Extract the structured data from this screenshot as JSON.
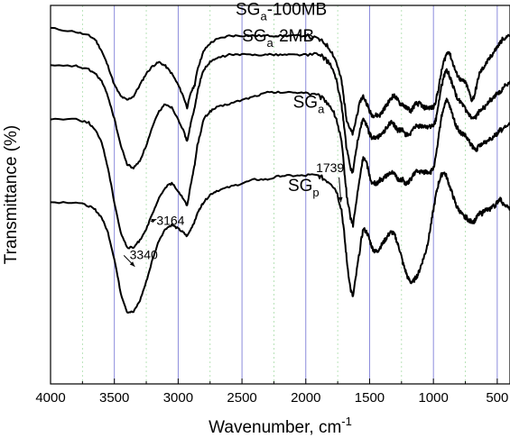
{
  "chart_data": {
    "type": "line",
    "title": "",
    "xlabel": "Wavenumber, cm",
    "xlabel_superscript": "-1",
    "ylabel": "Transmittance (%)",
    "xlim": [
      4000,
      400
    ],
    "x_reversed": true,
    "x_ticks": [
      "4000",
      "3500",
      "3000",
      "2500",
      "2000",
      "1500",
      "1000",
      "500"
    ],
    "x_tick_values": [
      4000,
      3500,
      3000,
      2500,
      2000,
      1500,
      1000,
      500
    ],
    "y_ticks_shown": false,
    "grid": {
      "major_vertical": [
        3500,
        3000,
        2500,
        2000,
        1500,
        1000,
        500
      ],
      "minor_vertical_dashed": [
        3750,
        3250,
        2750,
        2250,
        1750,
        1250,
        750
      ],
      "major_color": "#7f7fd8",
      "minor_color": "#a8dca8"
    },
    "series": [
      {
        "name": "SG",
        "name_sub": "a",
        "name_suffix": "-100MB",
        "x": [
          4000,
          3800,
          3700,
          3650,
          3600,
          3550,
          3500,
          3450,
          3400,
          3350,
          3300,
          3250,
          3200,
          3150,
          3100,
          3050,
          3000,
          2960,
          2930,
          2900,
          2870,
          2850,
          2820,
          2800,
          2750,
          2700,
          2600,
          2500,
          2400,
          2300,
          2200,
          2100,
          2000,
          1900,
          1850,
          1800,
          1760,
          1720,
          1700,
          1680,
          1650,
          1630,
          1600,
          1570,
          1550,
          1520,
          1500,
          1480,
          1460,
          1440,
          1420,
          1400,
          1380,
          1360,
          1340,
          1320,
          1300,
          1280,
          1260,
          1240,
          1220,
          1200,
          1180,
          1160,
          1140,
          1120,
          1100,
          1080,
          1060,
          1040,
          1020,
          1000,
          980,
          960,
          940,
          920,
          900,
          880,
          860,
          840,
          820,
          800,
          780,
          760,
          740,
          720,
          700,
          680,
          660,
          640,
          620,
          600,
          580,
          560,
          540,
          520,
          500,
          480,
          460,
          440,
          420,
          400
        ],
        "y": [
          94,
          93,
          92,
          91,
          88,
          84,
          79,
          76,
          75,
          76,
          79,
          82,
          84,
          85,
          84,
          82,
          79,
          76,
          73,
          77,
          79,
          83,
          86,
          88,
          90,
          91,
          92,
          92,
          92,
          92,
          92,
          92,
          92,
          91,
          90,
          88,
          85,
          80,
          75,
          70,
          67,
          66,
          71,
          75,
          76,
          74,
          72,
          71,
          71,
          71,
          71,
          72,
          73,
          74,
          75,
          76,
          76,
          75,
          74,
          74,
          73,
          73,
          72,
          73,
          74,
          74,
          74,
          73,
          73,
          73,
          73,
          73,
          75,
          78,
          82,
          85,
          87,
          88,
          86,
          84,
          82,
          81,
          80,
          80,
          79,
          77,
          75,
          76,
          79,
          82,
          83,
          84,
          85,
          86,
          87,
          88,
          89,
          90,
          91,
          91,
          92,
          92
        ]
      },
      {
        "name": "SG",
        "name_sub": "a",
        "name_suffix": "-2MB",
        "x": [
          4000,
          3800,
          3700,
          3650,
          3600,
          3550,
          3500,
          3450,
          3400,
          3350,
          3300,
          3250,
          3200,
          3150,
          3100,
          3050,
          3000,
          2960,
          2930,
          2900,
          2870,
          2850,
          2820,
          2800,
          2750,
          2700,
          2600,
          2500,
          2400,
          2300,
          2200,
          2100,
          2000,
          1900,
          1850,
          1800,
          1760,
          1720,
          1700,
          1680,
          1650,
          1630,
          1600,
          1570,
          1550,
          1520,
          1500,
          1480,
          1460,
          1440,
          1420,
          1400,
          1380,
          1360,
          1340,
          1320,
          1300,
          1280,
          1260,
          1240,
          1220,
          1200,
          1180,
          1160,
          1140,
          1120,
          1100,
          1080,
          1060,
          1040,
          1020,
          1000,
          980,
          960,
          940,
          920,
          900,
          880,
          860,
          840,
          820,
          800,
          780,
          760,
          740,
          720,
          700,
          680,
          660,
          640,
          620,
          600,
          580,
          560,
          540,
          520,
          500,
          480,
          460,
          440,
          420,
          400
        ],
        "y": [
          84,
          84,
          83,
          82,
          80,
          76,
          70,
          63,
          58,
          57,
          59,
          63,
          68,
          72,
          74,
          73,
          70,
          67,
          64,
          69,
          73,
          77,
          81,
          83,
          85,
          86,
          87,
          87,
          87,
          87,
          87,
          87,
          87,
          87,
          86,
          84,
          80,
          74,
          68,
          62,
          57,
          56,
          63,
          68,
          70,
          68,
          66,
          65,
          65,
          65,
          66,
          66,
          67,
          68,
          69,
          69,
          68,
          67,
          67,
          67,
          66,
          66,
          66,
          67,
          68,
          68,
          68,
          68,
          68,
          68,
          68,
          68,
          70,
          74,
          78,
          81,
          83,
          82,
          80,
          78,
          76,
          75,
          74,
          73,
          72,
          71,
          70,
          70,
          71,
          72,
          73,
          73,
          74,
          75,
          75,
          76,
          77,
          77,
          78,
          79,
          79,
          80
        ]
      },
      {
        "name": "SG",
        "name_sub": "a",
        "name_suffix": "",
        "x": [
          4000,
          3800,
          3700,
          3650,
          3600,
          3550,
          3500,
          3450,
          3400,
          3350,
          3300,
          3250,
          3200,
          3150,
          3100,
          3050,
          3000,
          2960,
          2930,
          2900,
          2870,
          2850,
          2820,
          2800,
          2750,
          2700,
          2600,
          2500,
          2400,
          2300,
          2200,
          2100,
          2000,
          1900,
          1850,
          1800,
          1760,
          1720,
          1700,
          1680,
          1650,
          1630,
          1600,
          1570,
          1550,
          1520,
          1500,
          1480,
          1460,
          1440,
          1420,
          1400,
          1380,
          1360,
          1340,
          1320,
          1300,
          1280,
          1260,
          1240,
          1220,
          1200,
          1180,
          1160,
          1140,
          1120,
          1100,
          1080,
          1060,
          1040,
          1020,
          1000,
          980,
          960,
          940,
          920,
          900,
          880,
          860,
          840,
          820,
          800,
          780,
          760,
          740,
          720,
          700,
          680,
          660,
          640,
          620,
          600,
          580,
          560,
          540,
          520,
          500,
          480,
          460,
          440,
          420,
          400
        ],
        "y": [
          70,
          70,
          69,
          67,
          64,
          57,
          48,
          40,
          36,
          36,
          38,
          41,
          45,
          49,
          52,
          53,
          51,
          49,
          47,
          53,
          58,
          63,
          67,
          70,
          72,
          73,
          74,
          75,
          76,
          77,
          77,
          77,
          77,
          76,
          75,
          73,
          70,
          64,
          57,
          50,
          44,
          42,
          49,
          56,
          60,
          58,
          55,
          53,
          53,
          53,
          54,
          54,
          55,
          55,
          56,
          56,
          55,
          54,
          54,
          54,
          53,
          53,
          54,
          55,
          56,
          56,
          56,
          56,
          56,
          56,
          56,
          57,
          60,
          65,
          70,
          73,
          75,
          74,
          72,
          70,
          68,
          67,
          66,
          66,
          65,
          64,
          63,
          62,
          62,
          63,
          63,
          64,
          64,
          65,
          65,
          66,
          66,
          67,
          67,
          68,
          68,
          69
        ]
      },
      {
        "name": "SG",
        "name_sub": "p",
        "name_suffix": "",
        "x": [
          4000,
          3800,
          3700,
          3650,
          3600,
          3550,
          3500,
          3450,
          3400,
          3350,
          3300,
          3250,
          3200,
          3150,
          3100,
          3050,
          3000,
          2960,
          2930,
          2900,
          2870,
          2850,
          2820,
          2800,
          2750,
          2700,
          2600,
          2500,
          2400,
          2300,
          2200,
          2100,
          2000,
          1900,
          1850,
          1800,
          1760,
          1720,
          1700,
          1680,
          1650,
          1630,
          1600,
          1570,
          1550,
          1520,
          1500,
          1480,
          1460,
          1440,
          1420,
          1400,
          1380,
          1360,
          1340,
          1320,
          1300,
          1280,
          1260,
          1240,
          1220,
          1200,
          1180,
          1160,
          1140,
          1120,
          1100,
          1080,
          1060,
          1040,
          1020,
          1000,
          980,
          960,
          940,
          920,
          900,
          880,
          860,
          840,
          820,
          800,
          780,
          760,
          740,
          720,
          700,
          680,
          660,
          640,
          620,
          600,
          580,
          560,
          540,
          520,
          500,
          480,
          460,
          440,
          420,
          400
        ],
        "y": [
          48,
          48,
          47,
          46,
          44,
          40,
          33,
          24,
          19,
          19,
          22,
          27,
          33,
          38,
          41,
          42,
          41,
          40,
          39,
          41,
          43,
          45,
          47,
          48,
          50,
          51,
          52,
          53,
          54,
          54,
          55,
          55,
          55,
          55,
          54,
          53,
          51,
          46,
          40,
          33,
          25,
          23,
          30,
          37,
          41,
          40,
          38,
          36,
          35,
          35,
          36,
          37,
          38,
          39,
          40,
          40,
          39,
          37,
          35,
          32,
          30,
          28,
          27,
          27,
          28,
          29,
          31,
          33,
          35,
          38,
          42,
          46,
          50,
          53,
          55,
          56,
          55,
          53,
          51,
          49,
          47,
          46,
          45,
          44,
          44,
          43,
          43,
          43,
          44,
          45,
          45,
          46,
          46,
          46,
          47,
          47,
          48,
          49,
          48,
          47,
          47,
          46
        ]
      }
    ],
    "annotations": [
      {
        "text": "3164",
        "x": 3164,
        "y": 38
      },
      {
        "text": "3340",
        "x": 3340,
        "y": 22
      },
      {
        "text": "1739",
        "x": 1739,
        "y": 49
      }
    ]
  }
}
